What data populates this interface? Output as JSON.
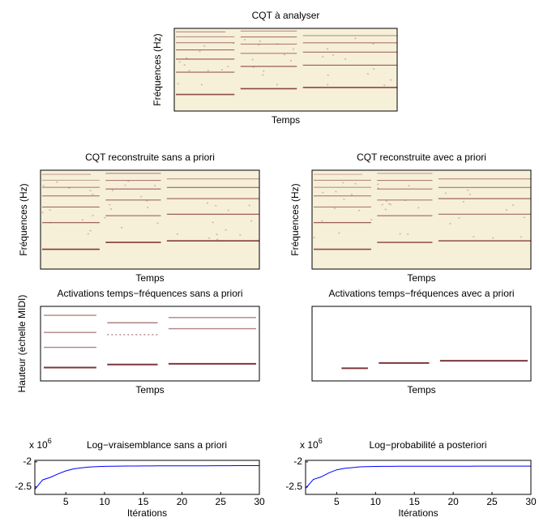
{
  "chart_data": [
    {
      "type": "spectrogram",
      "title": "CQT à analyser",
      "xlabel": "Temps",
      "ylabel": "Fréquences (Hz)"
    },
    {
      "type": "spectrogram",
      "title": "CQT reconstruite sans a priori",
      "xlabel": "Temps",
      "ylabel": "Fréquences (Hz)"
    },
    {
      "type": "spectrogram",
      "title": "CQT reconstruite avec a priori",
      "xlabel": "Temps",
      "ylabel": "Fréquences (Hz)"
    },
    {
      "type": "pianoroll",
      "title": "Activations temps−fréquences sans a priori",
      "xlabel": "Temps",
      "ylabel": "Hauteur (échelle MIDI)"
    },
    {
      "type": "pianoroll",
      "title": "Activations temps−fréquences avec a priori",
      "xlabel": "Temps"
    },
    {
      "type": "line",
      "title": "Log−vraisemblance sans a priori",
      "xlabel": "Itérations",
      "yoffset_text": "x 10",
      "yoffset_exponent": "6",
      "x": [
        1,
        2,
        3,
        4,
        5,
        6,
        7,
        8,
        9,
        10,
        11,
        12,
        13,
        14,
        15,
        16,
        17,
        18,
        19,
        20,
        21,
        22,
        23,
        24,
        25,
        26,
        27,
        28,
        29,
        30
      ],
      "series": [
        {
          "color": "#0000ff",
          "values": [
            -2.55,
            -2.36,
            -2.31,
            -2.24,
            -2.18,
            -2.14,
            -2.12,
            -2.105,
            -2.095,
            -2.09,
            -2.087,
            -2.085,
            -2.084,
            -2.083,
            -2.082,
            -2.081,
            -2.08,
            -2.08,
            -2.079,
            -2.079,
            -2.078,
            -2.078,
            -2.078,
            -2.077,
            -2.077,
            -2.077,
            -2.076,
            -2.076,
            -2.076,
            -2.075
          ]
        }
      ],
      "xlim": [
        1,
        30
      ],
      "xticks": [
        5,
        10,
        15,
        20,
        25,
        30
      ],
      "ylim": [
        -2.65,
        -1.97
      ],
      "yticks": [
        -2.5,
        -2
      ]
    },
    {
      "type": "line",
      "title": "Log−probabilité a posteriori",
      "xlabel": "Itérations",
      "yoffset_text": "x 10",
      "yoffset_exponent": "6",
      "x": [
        1,
        2,
        3,
        4,
        5,
        6,
        7,
        8,
        9,
        10,
        11,
        12,
        13,
        14,
        15,
        16,
        17,
        18,
        19,
        20,
        21,
        22,
        23,
        24,
        25,
        26,
        27,
        28,
        29,
        30
      ],
      "series": [
        {
          "color": "#0000ff",
          "values": [
            -2.53,
            -2.35,
            -2.3,
            -2.22,
            -2.16,
            -2.13,
            -2.115,
            -2.1,
            -2.095,
            -2.092,
            -2.09,
            -2.089,
            -2.088,
            -2.088,
            -2.087,
            -2.087,
            -2.087,
            -2.086,
            -2.086,
            -2.086,
            -2.086,
            -2.086,
            -2.085,
            -2.085,
            -2.085,
            -2.085,
            -2.085,
            -2.085,
            -2.085,
            -2.085
          ]
        }
      ],
      "xlim": [
        1,
        30
      ],
      "xticks": [
        5,
        10,
        15,
        20,
        25,
        30
      ],
      "ylim": [
        -2.65,
        -1.97
      ],
      "yticks": [
        -2.5,
        -2
      ]
    }
  ]
}
